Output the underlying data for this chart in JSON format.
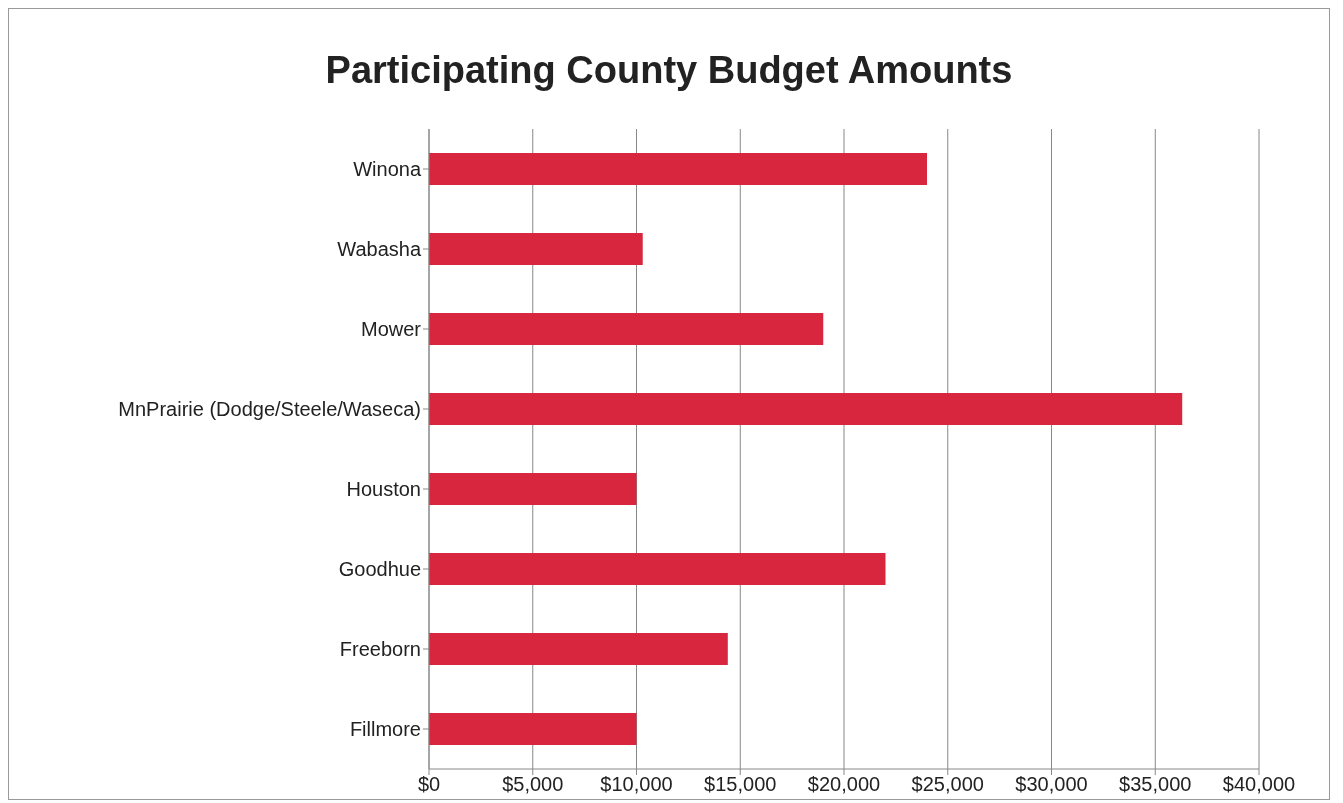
{
  "chart_data": {
    "type": "bar",
    "orientation": "horizontal",
    "title": "Participating County Budget Amounts",
    "categories": [
      "Winona",
      "Wabasha",
      "Mower",
      "MnPrairie (Dodge/Steele/Waseca)",
      "Houston",
      "Goodhue",
      "Freeborn",
      "Fillmore"
    ],
    "values": [
      24000,
      10300,
      19000,
      36300,
      10000,
      22000,
      14400,
      10000
    ],
    "color": "#d7263d",
    "xlim": [
      0,
      40000
    ],
    "xticks": [
      {
        "value": 0,
        "label": "$0"
      },
      {
        "value": 5000,
        "label": "$5,000"
      },
      {
        "value": 10000,
        "label": "$10,000"
      },
      {
        "value": 15000,
        "label": "$15,000"
      },
      {
        "value": 20000,
        "label": "$20,000"
      },
      {
        "value": 25000,
        "label": "$25,000"
      },
      {
        "value": 30000,
        "label": "$30,000"
      },
      {
        "value": 35000,
        "label": "$35,000"
      },
      {
        "value": 40000,
        "label": "$40,000"
      }
    ],
    "grid": "x",
    "legend": false
  }
}
